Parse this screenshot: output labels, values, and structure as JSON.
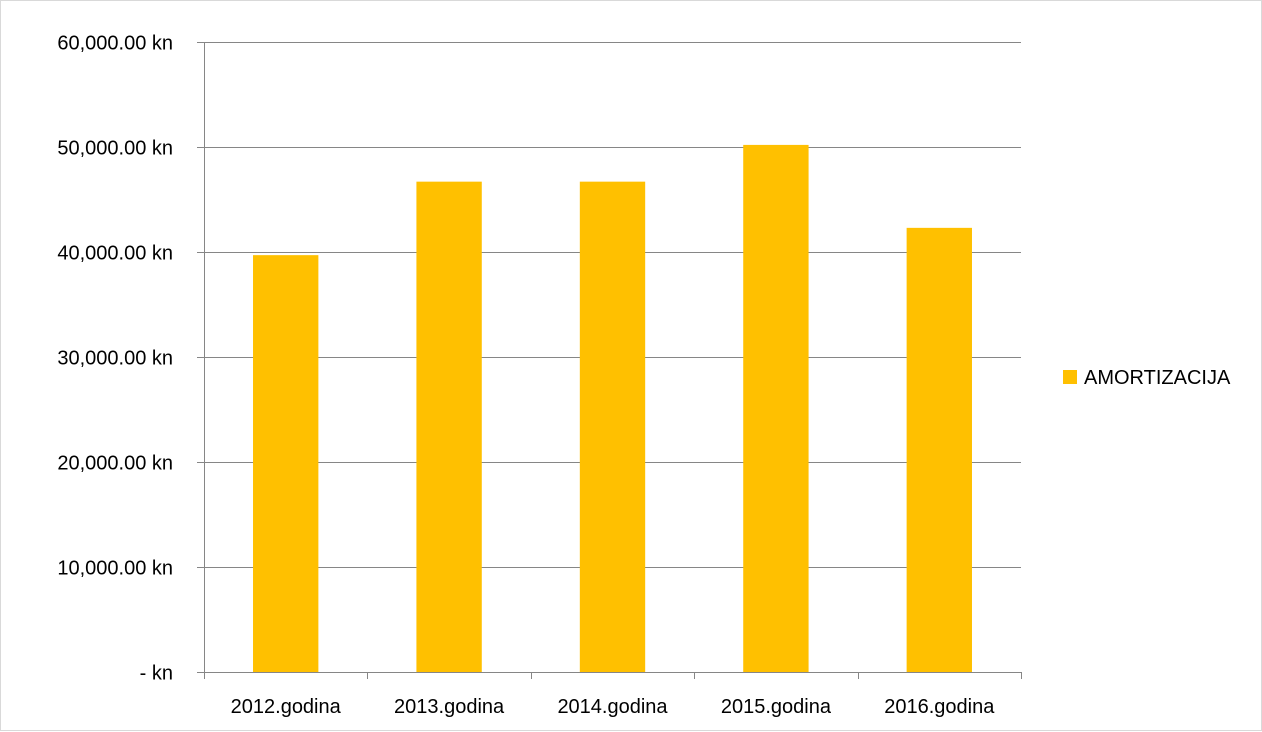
{
  "chart_data": {
    "type": "bar",
    "title": "",
    "xlabel": "",
    "ylabel": "",
    "categories": [
      "2012.godina",
      "2013.godina",
      "2014.godina",
      "2015.godina",
      "2016.godina"
    ],
    "series": [
      {
        "name": "AMORTIZACIJA",
        "values": [
          39700,
          46700,
          46700,
          50200,
          42300
        ],
        "color": "#FFC000"
      }
    ],
    "ylim": [
      0,
      60000
    ],
    "y_ticks": [
      0,
      10000,
      20000,
      30000,
      40000,
      50000,
      60000
    ],
    "y_tick_labels": [
      "-   kn",
      "10,000.00 kn",
      "20,000.00 kn",
      "30,000.00 kn",
      "40,000.00 kn",
      "50,000.00 kn",
      "60,000.00 kn"
    ],
    "grid": true,
    "gridline_color": "#868686",
    "legend_position": "right"
  }
}
